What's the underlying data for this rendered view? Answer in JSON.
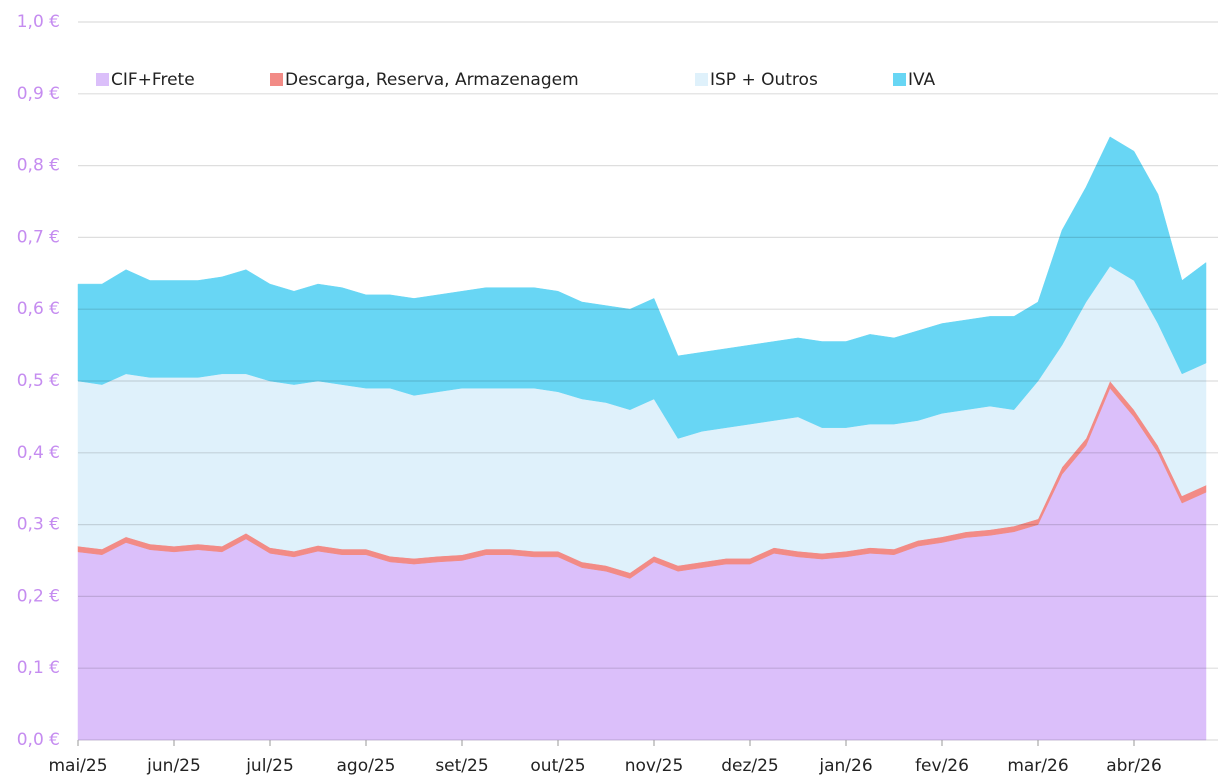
{
  "chart_data": {
    "type": "stacked_area",
    "categories": [
      "mai/25",
      null,
      null,
      null,
      "jun/25",
      null,
      null,
      null,
      "jul/25",
      null,
      null,
      null,
      "ago/25",
      null,
      null,
      null,
      "set/25",
      null,
      null,
      null,
      "out/25",
      null,
      null,
      null,
      "nov/25",
      null,
      null,
      null,
      "dez/25",
      null,
      null,
      null,
      "jan/26",
      null,
      null,
      null,
      "fev/26",
      null,
      null,
      null,
      "mar/26",
      null,
      null,
      null,
      "abr/26",
      null,
      null,
      null
    ],
    "series": [
      {
        "name": "CIF+Frete",
        "color": "#dbbffa",
        "values": [
          0.262,
          0.258,
          0.275,
          0.265,
          0.262,
          0.265,
          0.262,
          0.28,
          0.26,
          0.255,
          0.263,
          0.258,
          0.258,
          0.248,
          0.245,
          0.248,
          0.25,
          0.258,
          0.258,
          0.255,
          0.255,
          0.24,
          0.235,
          0.225,
          0.248,
          0.235,
          0.24,
          0.245,
          0.245,
          0.26,
          0.255,
          0.252,
          0.255,
          0.26,
          0.258,
          0.27,
          0.275,
          0.282,
          0.285,
          0.29,
          0.3,
          0.37,
          0.41,
          0.49,
          0.45,
          0.4,
          0.33,
          0.345
        ]
      },
      {
        "name": "Descarga, Reserva, Armazenagem",
        "color": "#f28b86",
        "values": [
          0.008,
          0.008,
          0.008,
          0.008,
          0.008,
          0.008,
          0.008,
          0.008,
          0.008,
          0.008,
          0.008,
          0.008,
          0.008,
          0.008,
          0.008,
          0.008,
          0.008,
          0.008,
          0.008,
          0.008,
          0.008,
          0.008,
          0.008,
          0.008,
          0.008,
          0.008,
          0.008,
          0.008,
          0.008,
          0.008,
          0.008,
          0.008,
          0.008,
          0.008,
          0.008,
          0.008,
          0.008,
          0.008,
          0.008,
          0.008,
          0.008,
          0.01,
          0.01,
          0.01,
          0.01,
          0.01,
          0.01,
          0.01
        ]
      },
      {
        "name": "ISP + Outros",
        "color": "#dff1fb",
        "values": [
          0.23,
          0.229,
          0.227,
          0.232,
          0.235,
          0.232,
          0.24,
          0.222,
          0.232,
          0.232,
          0.229,
          0.229,
          0.224,
          0.234,
          0.227,
          0.229,
          0.232,
          0.224,
          0.224,
          0.227,
          0.222,
          0.227,
          0.227,
          0.227,
          0.219,
          0.177,
          0.182,
          0.182,
          0.187,
          0.177,
          0.187,
          0.175,
          0.172,
          0.172,
          0.174,
          0.167,
          0.172,
          0.17,
          0.172,
          0.162,
          0.192,
          0.17,
          0.19,
          0.16,
          0.18,
          0.17,
          0.17,
          0.17
        ]
      },
      {
        "name": "IVA",
        "color": "#68d6f4",
        "values": [
          0.135,
          0.14,
          0.145,
          0.135,
          0.135,
          0.135,
          0.135,
          0.145,
          0.135,
          0.13,
          0.135,
          0.135,
          0.13,
          0.13,
          0.135,
          0.135,
          0.135,
          0.14,
          0.14,
          0.14,
          0.14,
          0.135,
          0.135,
          0.14,
          0.14,
          0.115,
          0.11,
          0.11,
          0.11,
          0.11,
          0.11,
          0.12,
          0.12,
          0.125,
          0.12,
          0.125,
          0.125,
          0.125,
          0.125,
          0.13,
          0.11,
          0.16,
          0.16,
          0.18,
          0.18,
          0.18,
          0.13,
          0.14
        ]
      }
    ],
    "ylim": [
      0,
      1
    ],
    "yticks": [
      {
        "value": 0,
        "label": "0,0 €"
      },
      {
        "value": 0.1,
        "label": "0,1 €"
      },
      {
        "value": 0.2,
        "label": "0,2 €"
      },
      {
        "value": 0.3,
        "label": "0,3 €"
      },
      {
        "value": 0.4,
        "label": "0,4 €"
      },
      {
        "value": 0.5,
        "label": "0,5 €"
      },
      {
        "value": 0.6,
        "label": "0,6 €"
      },
      {
        "value": 0.7,
        "label": "0,7 €"
      },
      {
        "value": 0.8,
        "label": "0,8 €"
      },
      {
        "value": 0.9,
        "label": "0,9 €"
      },
      {
        "value": 1,
        "label": "1,0 €"
      }
    ],
    "grid": true,
    "legend": "top"
  }
}
